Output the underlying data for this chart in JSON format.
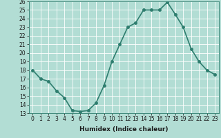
{
  "x": [
    0,
    1,
    2,
    3,
    4,
    5,
    6,
    7,
    8,
    9,
    10,
    11,
    12,
    13,
    14,
    15,
    16,
    17,
    18,
    19,
    20,
    21,
    22,
    23
  ],
  "y": [
    18,
    17,
    16.7,
    15.6,
    14.8,
    13.3,
    13.2,
    13.3,
    14.2,
    16.2,
    19,
    21,
    23,
    23.5,
    25,
    25,
    25,
    25.9,
    24.5,
    23,
    20.5,
    19,
    18,
    17.5
  ],
  "line_color": "#2e7d6e",
  "marker_color": "#2e7d6e",
  "bg_color": "#b2ddd4",
  "grid_color": "#ffffff",
  "xlabel": "Humidex (Indice chaleur)",
  "ylim": [
    13,
    26
  ],
  "xlim": [
    -0.5,
    23.5
  ],
  "yticks": [
    13,
    14,
    15,
    16,
    17,
    18,
    19,
    20,
    21,
    22,
    23,
    24,
    25,
    26
  ],
  "xticks": [
    0,
    1,
    2,
    3,
    4,
    5,
    6,
    7,
    8,
    9,
    10,
    11,
    12,
    13,
    14,
    15,
    16,
    17,
    18,
    19,
    20,
    21,
    22,
    23
  ],
  "xlabel_fontsize": 6.5,
  "tick_fontsize": 5.5,
  "line_width": 1.2,
  "marker_size": 2.5
}
